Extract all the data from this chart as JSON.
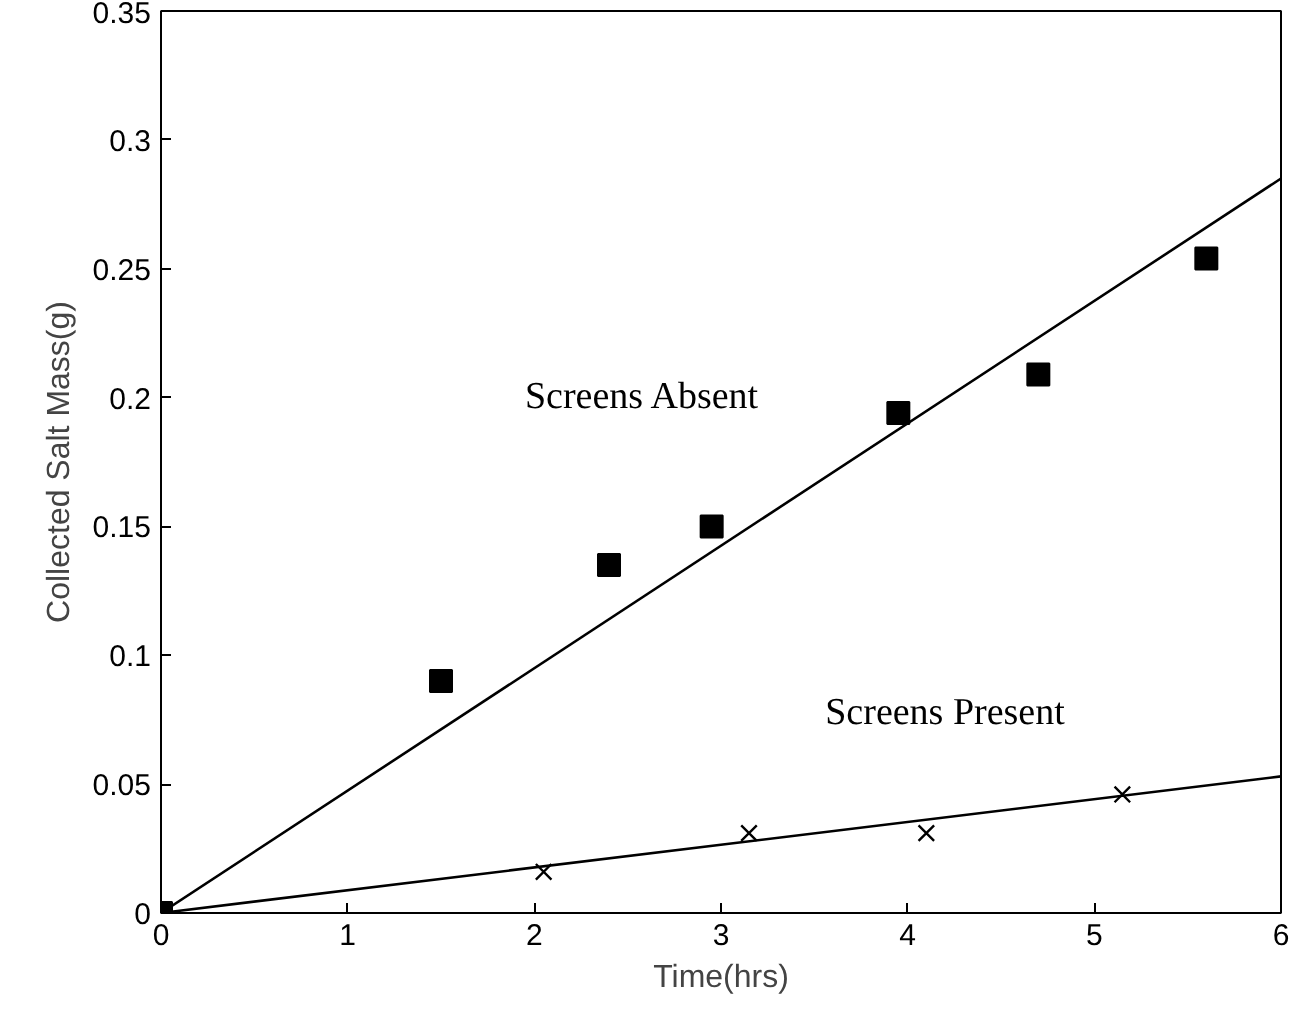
{
  "chart_data": {
    "type": "scatter",
    "xlabel": "Time(hrs)",
    "ylabel": "Collected Salt Mass(g)",
    "xlim": [
      0,
      6
    ],
    "ylim": [
      0,
      0.35
    ],
    "xticks": [
      0,
      1,
      2,
      3,
      4,
      5,
      6
    ],
    "yticks": [
      0,
      0.05,
      0.1,
      0.15,
      0.2,
      0.25,
      0.3,
      0.35
    ],
    "grid": false,
    "series": [
      {
        "marker": "square",
        "color": "#000000",
        "x": [
          0,
          1.5,
          2.4,
          2.95,
          3.95,
          4.7,
          5.6
        ],
        "values": [
          0,
          0.09,
          0.135,
          0.15,
          0.194,
          0.209,
          0.254
        ]
      },
      {
        "marker": "cross",
        "color": "#000000",
        "x": [
          2.05,
          3.15,
          4.1,
          5.15
        ],
        "values": [
          0.016,
          0.031,
          0.031,
          0.046
        ]
      },
      {
        "type": "line",
        "name": "Screens Absent",
        "color": "#000000",
        "x": [
          0,
          6
        ],
        "values": [
          0,
          0.285
        ]
      },
      {
        "type": "line",
        "name": "Screens Present",
        "color": "#000000",
        "x": [
          0,
          6
        ],
        "values": [
          0,
          0.053
        ]
      }
    ]
  }
}
